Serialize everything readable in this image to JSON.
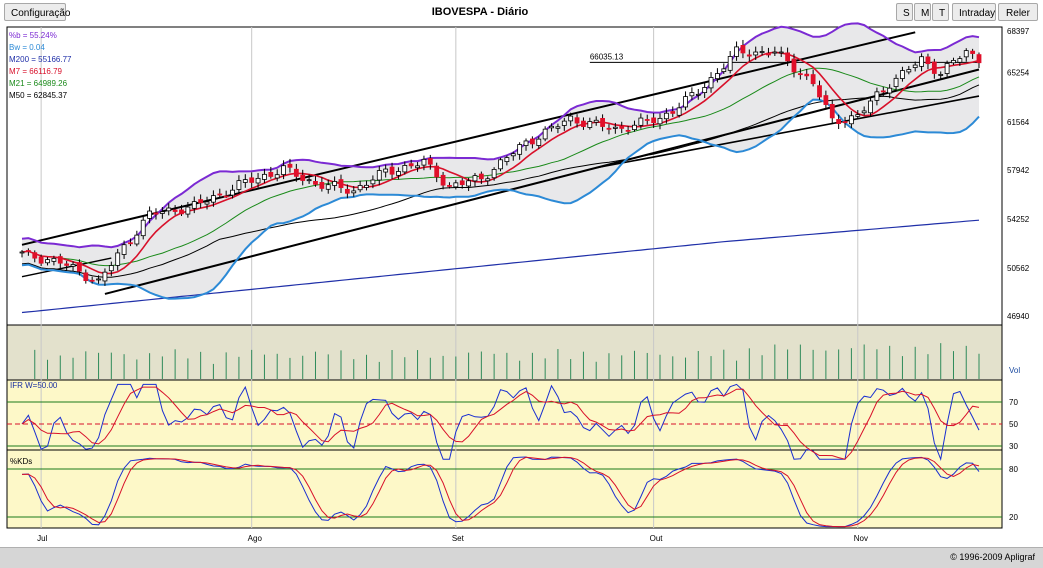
{
  "toolbar": {
    "config_label": "Configuração",
    "title": "IBOVESPA - Diário",
    "s_label": "S",
    "m_label": "M",
    "t_label": "T",
    "intraday_label": "Intraday",
    "reler_label": "Reler"
  },
  "footer": {
    "copyright": "© 1996-2009 Apligraf"
  },
  "colors": {
    "candle_up": "#ffffff",
    "candle_down": "#e0102a",
    "bb_band": "#7b2ad3",
    "bb_lower": "#2c8ad6",
    "m200": "#1f2fa8",
    "m7": "#d8102a",
    "m21": "#1a8a1a",
    "m50": "#000000",
    "volume_bg": "#e3e1cc",
    "osc_bg": "#fdf8c8"
  },
  "chart_data": {
    "type": "candlestick",
    "title": "IBOVESPA - Diário",
    "legend": [
      {
        "text": "%b = 55.24%",
        "color": "#7b2ad3"
      },
      {
        "text": "Bw = 0.04",
        "color": "#2c8ad6"
      },
      {
        "text": "M200 = 55166.77",
        "color": "#1f2fa8"
      },
      {
        "text": "M7 = 66116.79",
        "color": "#d8102a"
      },
      {
        "text": "M21 = 64989.26",
        "color": "#1a8a1a"
      },
      {
        "text": "M50 = 62845.37",
        "color": "#000000"
      }
    ],
    "price_axis": {
      "ticks": [
        "68397",
        "65254",
        "61564",
        "57942",
        "54252",
        "50562",
        "46940"
      ],
      "ylim": [
        46940,
        68397
      ]
    },
    "level_annotation": {
      "label": "66035.13",
      "value": 66035.13
    },
    "x_labels": [
      "Jul",
      "Ago",
      "Set",
      "Out",
      "Nov"
    ],
    "volume": {
      "label": "Vol"
    },
    "ifr": {
      "label": "IFR W=50.00",
      "ticks": [
        "70",
        "50",
        "30"
      ],
      "ylim": [
        20,
        80
      ]
    },
    "kd": {
      "label": "%KDs",
      "ticks": [
        "80",
        "20"
      ],
      "ylim": [
        0,
        100
      ]
    },
    "close_anchors": [
      {
        "day": 0,
        "value": 51600
      },
      {
        "day": 6,
        "value": 51000
      },
      {
        "day": 12,
        "value": 49500
      },
      {
        "day": 15,
        "value": 51500
      },
      {
        "day": 20,
        "value": 54600
      },
      {
        "day": 27,
        "value": 55200
      },
      {
        "day": 35,
        "value": 57000
      },
      {
        "day": 41,
        "value": 58000
      },
      {
        "day": 46,
        "value": 56900
      },
      {
        "day": 52,
        "value": 56400
      },
      {
        "day": 57,
        "value": 57800
      },
      {
        "day": 63,
        "value": 58500
      },
      {
        "day": 67,
        "value": 56700
      },
      {
        "day": 72,
        "value": 57300
      },
      {
        "day": 79,
        "value": 60000
      },
      {
        "day": 86,
        "value": 61800
      },
      {
        "day": 93,
        "value": 61000
      },
      {
        "day": 100,
        "value": 61800
      },
      {
        "day": 106,
        "value": 63800
      },
      {
        "day": 112,
        "value": 66800
      },
      {
        "day": 118,
        "value": 66800
      },
      {
        "day": 124,
        "value": 64500
      },
      {
        "day": 127,
        "value": 61600
      },
      {
        "day": 131,
        "value": 62000
      },
      {
        "day": 136,
        "value": 64500
      },
      {
        "day": 141,
        "value": 66200
      },
      {
        "day": 144,
        "value": 65300
      },
      {
        "day": 148,
        "value": 66800
      },
      {
        "day": 150,
        "value": 66300
      }
    ]
  }
}
